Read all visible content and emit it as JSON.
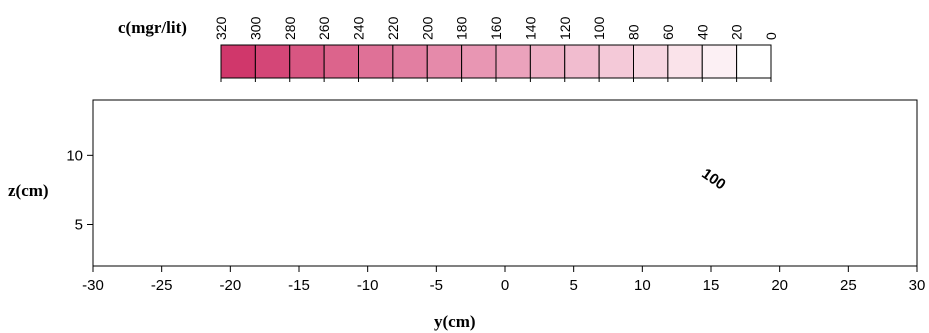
{
  "chart_data": {
    "type": "contour",
    "legend_title": "c(mgr/lit)",
    "legend_levels": [
      320,
      300,
      280,
      260,
      240,
      220,
      200,
      180,
      160,
      140,
      120,
      100,
      80,
      60,
      40,
      20,
      0
    ],
    "legend_colors": [
      "#d0376b",
      "#d44677",
      "#d85682",
      "#dc648c",
      "#df7197",
      "#e27ea1",
      "#e58aaa",
      "#e896b3",
      "#eba2bc",
      "#eeafc5",
      "#f1bccf",
      "#f4c9d8",
      "#f7d6e1",
      "#fae3ea",
      "#fcf0f4",
      "#ffffff"
    ],
    "xlabel": "y(cm)",
    "ylabel": "z(cm)",
    "x_ticks": [
      -30,
      -25,
      -20,
      -15,
      -10,
      -5,
      0,
      5,
      10,
      15,
      20,
      25,
      30
    ],
    "y_ticks": [
      5,
      10
    ],
    "xlim": [
      -30,
      30
    ],
    "ylim": [
      2,
      14
    ],
    "annotations": [
      {
        "text": "100",
        "x": 15,
        "y": 8
      }
    ],
    "contour_levels": [
      20,
      40,
      60,
      80,
      100,
      120,
      140,
      160,
      180,
      200,
      220,
      240,
      260,
      280,
      300,
      320
    ],
    "grid": false,
    "legend_position": "top"
  }
}
